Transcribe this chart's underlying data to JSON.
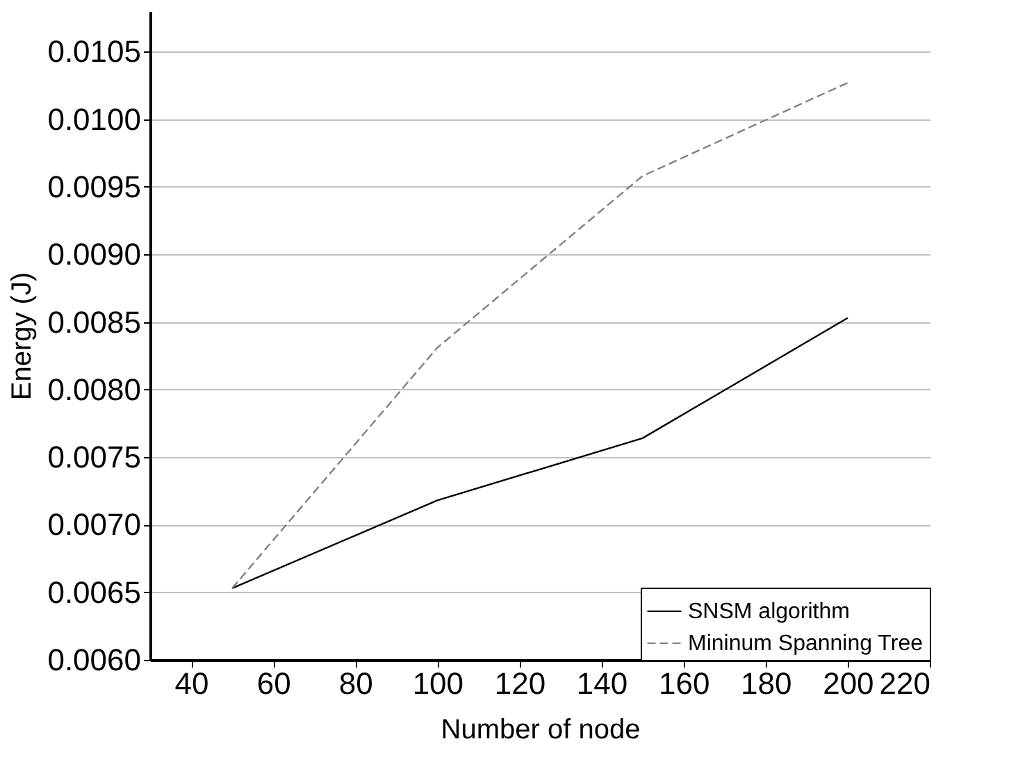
{
  "chart_data": {
    "type": "line",
    "xlabel": "Number of node",
    "ylabel": "Energy (J)",
    "x": [
      50,
      100,
      150,
      200
    ],
    "series": [
      {
        "name": "SNSM algorithm",
        "color": "#000000",
        "line_style": "solid",
        "values": [
          0.00653,
          0.00718,
          0.00764,
          0.00853
        ]
      },
      {
        "name": "Mininum Spanning Tree",
        "color": "#808080",
        "line_style": "dashed",
        "values": [
          0.00653,
          0.00831,
          0.00958,
          0.01027
        ]
      }
    ],
    "xlim": [
      30,
      220
    ],
    "xticks": [
      40,
      60,
      80,
      100,
      120,
      140,
      160,
      180,
      200,
      220
    ],
    "ylim": [
      0.006,
      0.0108
    ],
    "yticks": [
      {
        "value": 0.006,
        "label": "0.0060"
      },
      {
        "value": 0.0065,
        "label": "0.0065"
      },
      {
        "value": 0.007,
        "label": "0.0070"
      },
      {
        "value": 0.0075,
        "label": "0.0075"
      },
      {
        "value": 0.008,
        "label": "0.0080"
      },
      {
        "value": 0.0085,
        "label": "0.0085"
      },
      {
        "value": 0.009,
        "label": "0.0090"
      },
      {
        "value": 0.0095,
        "label": "0.0095"
      },
      {
        "value": 0.01,
        "label": "0.0100"
      },
      {
        "value": 0.0105,
        "label": "0.0105"
      }
    ],
    "grid": "y",
    "legend": "bottom right",
    "marker": "none"
  }
}
